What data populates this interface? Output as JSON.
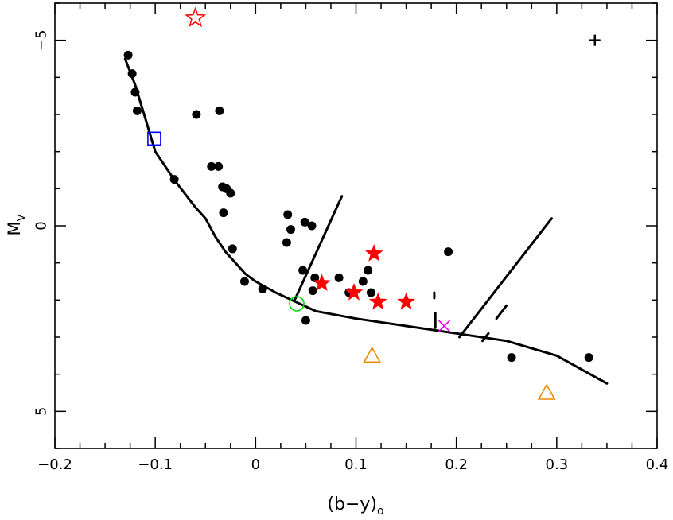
{
  "chart_data": {
    "type": "scatter",
    "title": "",
    "xlabel": "(b−y)",
    "xlabel_subscript": "o",
    "ylabel": "M",
    "ylabel_subscript": "V",
    "xlim": [
      -0.2,
      0.4
    ],
    "ylim": [
      6,
      -6
    ],
    "x_ticks": [
      {
        "value": -0.2,
        "label": "−0.2"
      },
      {
        "value": -0.1,
        "label": "−0.1"
      },
      {
        "value": 0.0,
        "label": "0"
      },
      {
        "value": 0.1,
        "label": "0.1"
      },
      {
        "value": 0.2,
        "label": "0.2"
      },
      {
        "value": 0.3,
        "label": "0.3"
      },
      {
        "value": 0.4,
        "label": "0.4"
      }
    ],
    "y_ticks": [
      {
        "value": -5,
        "label": "−5"
      },
      {
        "value": 0,
        "label": "0"
      },
      {
        "value": 5,
        "label": "5"
      }
    ],
    "grid": false,
    "colors": {
      "black": "#000000",
      "red": "#ff0000",
      "blue": "#0000ff",
      "green": "#00dd00",
      "magenta": "#ee00ee",
      "orange": "#ee8800"
    },
    "series": [
      {
        "name": "filled circles",
        "marker": "circle",
        "color": "#000000",
        "points": [
          {
            "x": -0.127,
            "y": -4.6
          },
          {
            "x": -0.123,
            "y": -4.1
          },
          {
            "x": -0.12,
            "y": -3.6
          },
          {
            "x": -0.118,
            "y": -3.1
          },
          {
            "x": -0.059,
            "y": -3.0
          },
          {
            "x": -0.036,
            "y": -3.1
          },
          {
            "x": -0.081,
            "y": -1.25
          },
          {
            "x": -0.044,
            "y": -1.6
          },
          {
            "x": -0.037,
            "y": -1.6
          },
          {
            "x": -0.033,
            "y": -1.05
          },
          {
            "x": -0.029,
            "y": -1.0
          },
          {
            "x": -0.025,
            "y": -0.88
          },
          {
            "x": -0.032,
            "y": -0.35
          },
          {
            "x": -0.023,
            "y": 0.62
          },
          {
            "x": -0.011,
            "y": 1.5
          },
          {
            "x": 0.007,
            "y": 1.7
          },
          {
            "x": 0.032,
            "y": -0.3
          },
          {
            "x": 0.035,
            "y": 0.1
          },
          {
            "x": 0.031,
            "y": 0.45
          },
          {
            "x": 0.049,
            "y": -0.1
          },
          {
            "x": 0.056,
            "y": 0.0
          },
          {
            "x": 0.047,
            "y": 1.2
          },
          {
            "x": 0.059,
            "y": 1.4
          },
          {
            "x": 0.057,
            "y": 1.75
          },
          {
            "x": 0.05,
            "y": 2.55
          },
          {
            "x": 0.083,
            "y": 1.4
          },
          {
            "x": 0.093,
            "y": 1.8
          },
          {
            "x": 0.107,
            "y": 1.5
          },
          {
            "x": 0.112,
            "y": 1.2
          },
          {
            "x": 0.115,
            "y": 1.8
          },
          {
            "x": 0.192,
            "y": 0.7
          },
          {
            "x": 0.255,
            "y": 3.55
          },
          {
            "x": 0.332,
            "y": 3.55
          }
        ]
      },
      {
        "name": "filled red stars",
        "marker": "star-filled",
        "color": "#ff0000",
        "points": [
          {
            "x": 0.118,
            "y": 0.75
          },
          {
            "x": 0.066,
            "y": 1.55
          },
          {
            "x": 0.098,
            "y": 1.8
          },
          {
            "x": 0.122,
            "y": 2.05
          },
          {
            "x": 0.15,
            "y": 2.05
          }
        ]
      },
      {
        "name": "open red star",
        "marker": "star-open",
        "color": "#ff0000",
        "points": [
          {
            "x": -0.06,
            "y": -5.6
          }
        ]
      },
      {
        "name": "open blue square",
        "marker": "square",
        "color": "#0000ff",
        "points": [
          {
            "x": -0.101,
            "y": -2.35
          }
        ]
      },
      {
        "name": "open green circle",
        "marker": "circle-open",
        "color": "#00dd00",
        "points": [
          {
            "x": 0.041,
            "y": 2.1
          }
        ]
      },
      {
        "name": "magenta cross",
        "marker": "x",
        "color": "#ee00ee",
        "points": [
          {
            "x": 0.188,
            "y": 2.7
          }
        ]
      },
      {
        "name": "orange triangles",
        "marker": "triangle",
        "color": "#ee8800",
        "points": [
          {
            "x": 0.116,
            "y": 3.5
          },
          {
            "x": 0.29,
            "y": 4.5
          }
        ]
      },
      {
        "name": "error cross",
        "marker": "plus",
        "color": "#000000",
        "points": [
          {
            "x": 0.338,
            "y": -5.0
          }
        ]
      }
    ],
    "lines": [
      {
        "name": "ZAMS",
        "style": "solid",
        "points": [
          [
            -0.13,
            -4.5
          ],
          [
            -0.12,
            -3.8
          ],
          [
            -0.11,
            -2.9
          ],
          [
            -0.1,
            -2.0
          ],
          [
            -0.08,
            -1.2
          ],
          [
            -0.06,
            -0.5
          ],
          [
            -0.05,
            -0.2
          ],
          [
            -0.04,
            0.3
          ],
          [
            -0.03,
            0.7
          ],
          [
            -0.02,
            1.0
          ],
          [
            -0.01,
            1.3
          ],
          [
            0.0,
            1.5
          ],
          [
            0.02,
            1.8
          ],
          [
            0.04,
            2.05
          ],
          [
            0.06,
            2.3
          ],
          [
            0.1,
            2.5
          ],
          [
            0.15,
            2.7
          ],
          [
            0.2,
            2.9
          ],
          [
            0.25,
            3.1
          ],
          [
            0.3,
            3.5
          ],
          [
            0.35,
            4.25
          ]
        ]
      },
      {
        "name": "line 1",
        "style": "solid",
        "points": [
          [
            0.039,
            2.0
          ],
          [
            0.086,
            -0.8
          ]
        ]
      },
      {
        "name": "line 2",
        "style": "solid",
        "points": [
          [
            0.203,
            3.0
          ],
          [
            0.295,
            -0.2
          ]
        ]
      },
      {
        "name": "dash short a",
        "style": "solid",
        "points": [
          [
            0.178,
            1.8
          ],
          [
            0.178,
            1.95
          ]
        ]
      },
      {
        "name": "dash short b",
        "style": "solid",
        "points": [
          [
            0.179,
            2.35
          ],
          [
            0.179,
            2.75
          ]
        ]
      },
      {
        "name": "dash short c",
        "style": "solid",
        "points": [
          [
            0.226,
            3.1
          ],
          [
            0.232,
            2.9
          ]
        ]
      },
      {
        "name": "dash short d",
        "style": "solid",
        "points": [
          [
            0.24,
            2.5
          ],
          [
            0.25,
            2.15
          ]
        ]
      }
    ]
  }
}
